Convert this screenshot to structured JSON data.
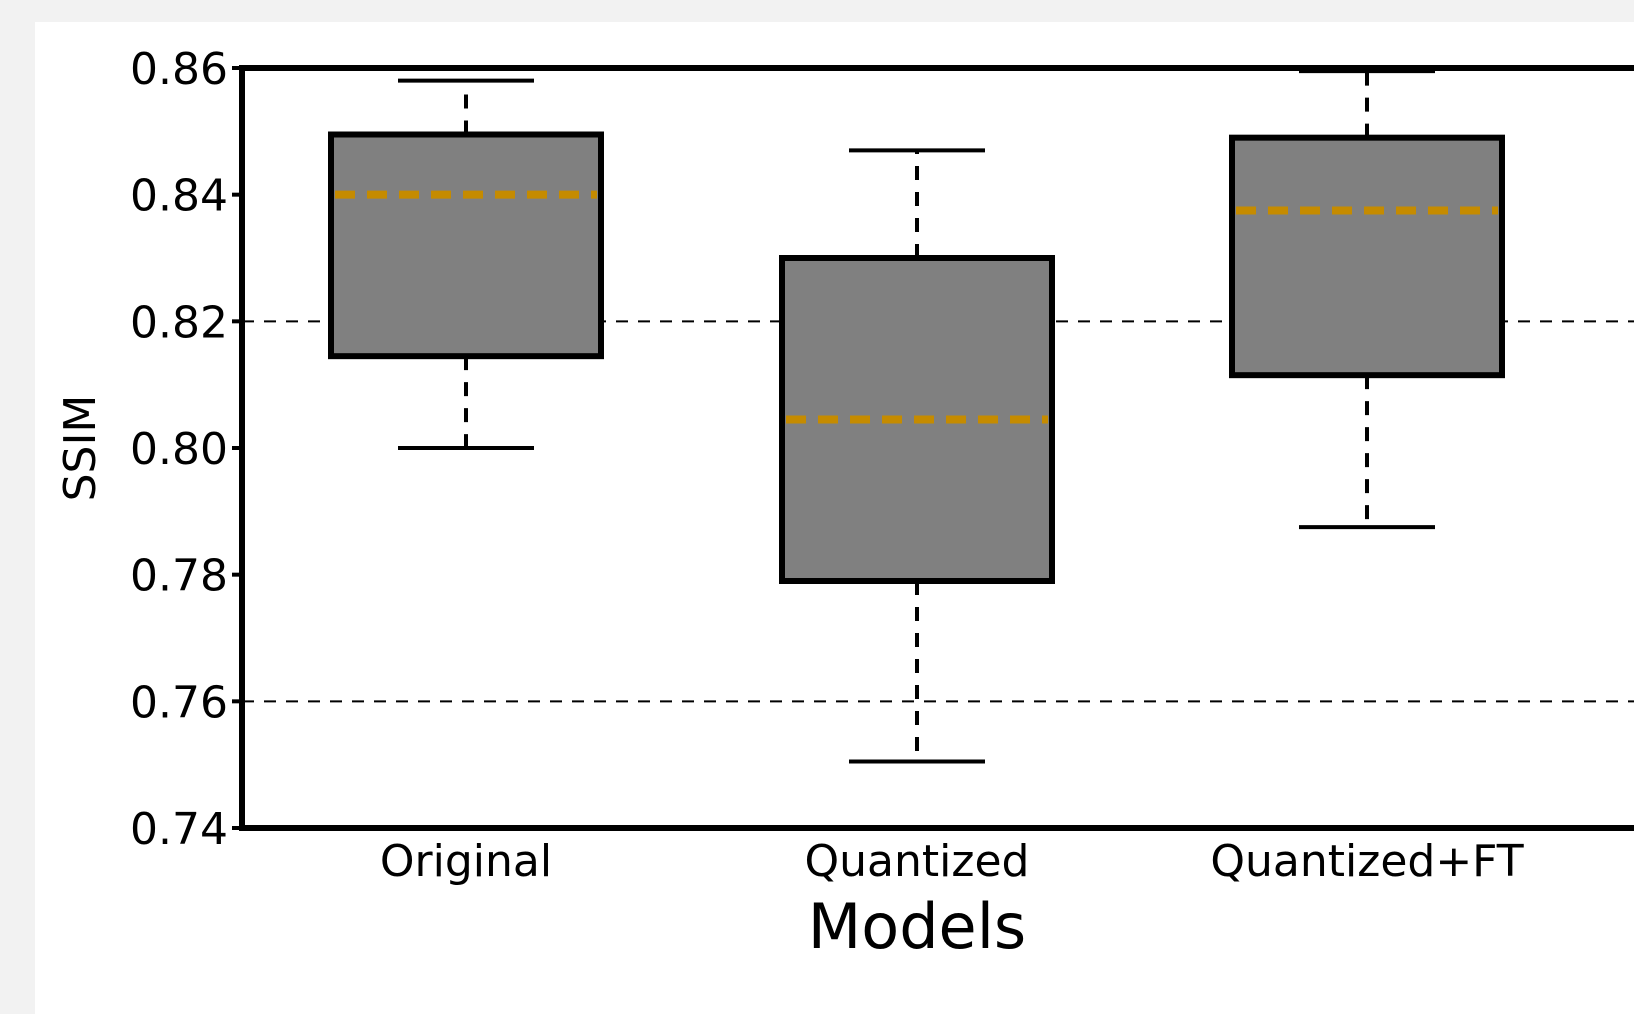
{
  "chart_data": {
    "type": "box",
    "xlabel": "Models",
    "ylabel": "SSIM",
    "ylim": [
      0.74,
      0.86
    ],
    "yticks": [
      "0.74",
      "0.76",
      "0.78",
      "0.80",
      "0.82",
      "0.84",
      "0.86"
    ],
    "ytick_values": [
      0.74,
      0.76,
      0.78,
      0.8,
      0.82,
      0.84,
      0.86
    ],
    "gridlines_at": [
      0.76,
      0.82
    ],
    "grid": "horizontal dashed",
    "categories": [
      "Original",
      "Quantized",
      "Quantized+FT"
    ],
    "boxes": [
      {
        "category": "Original",
        "whisker_low": 0.8,
        "q1": 0.8145,
        "median": 0.84,
        "q3": 0.8495,
        "whisker_high": 0.858
      },
      {
        "category": "Quantized",
        "whisker_low": 0.7505,
        "q1": 0.779,
        "median": 0.8045,
        "q3": 0.83,
        "whisker_high": 0.847
      },
      {
        "category": "Quantized+FT",
        "whisker_low": 0.7875,
        "q1": 0.8115,
        "median": 0.8375,
        "q3": 0.849,
        "whisker_high": 0.8595
      }
    ],
    "colors": {
      "box_fill": "#808080",
      "box_edge": "#000000",
      "median": "#c58b00",
      "grid": "#000000"
    }
  }
}
